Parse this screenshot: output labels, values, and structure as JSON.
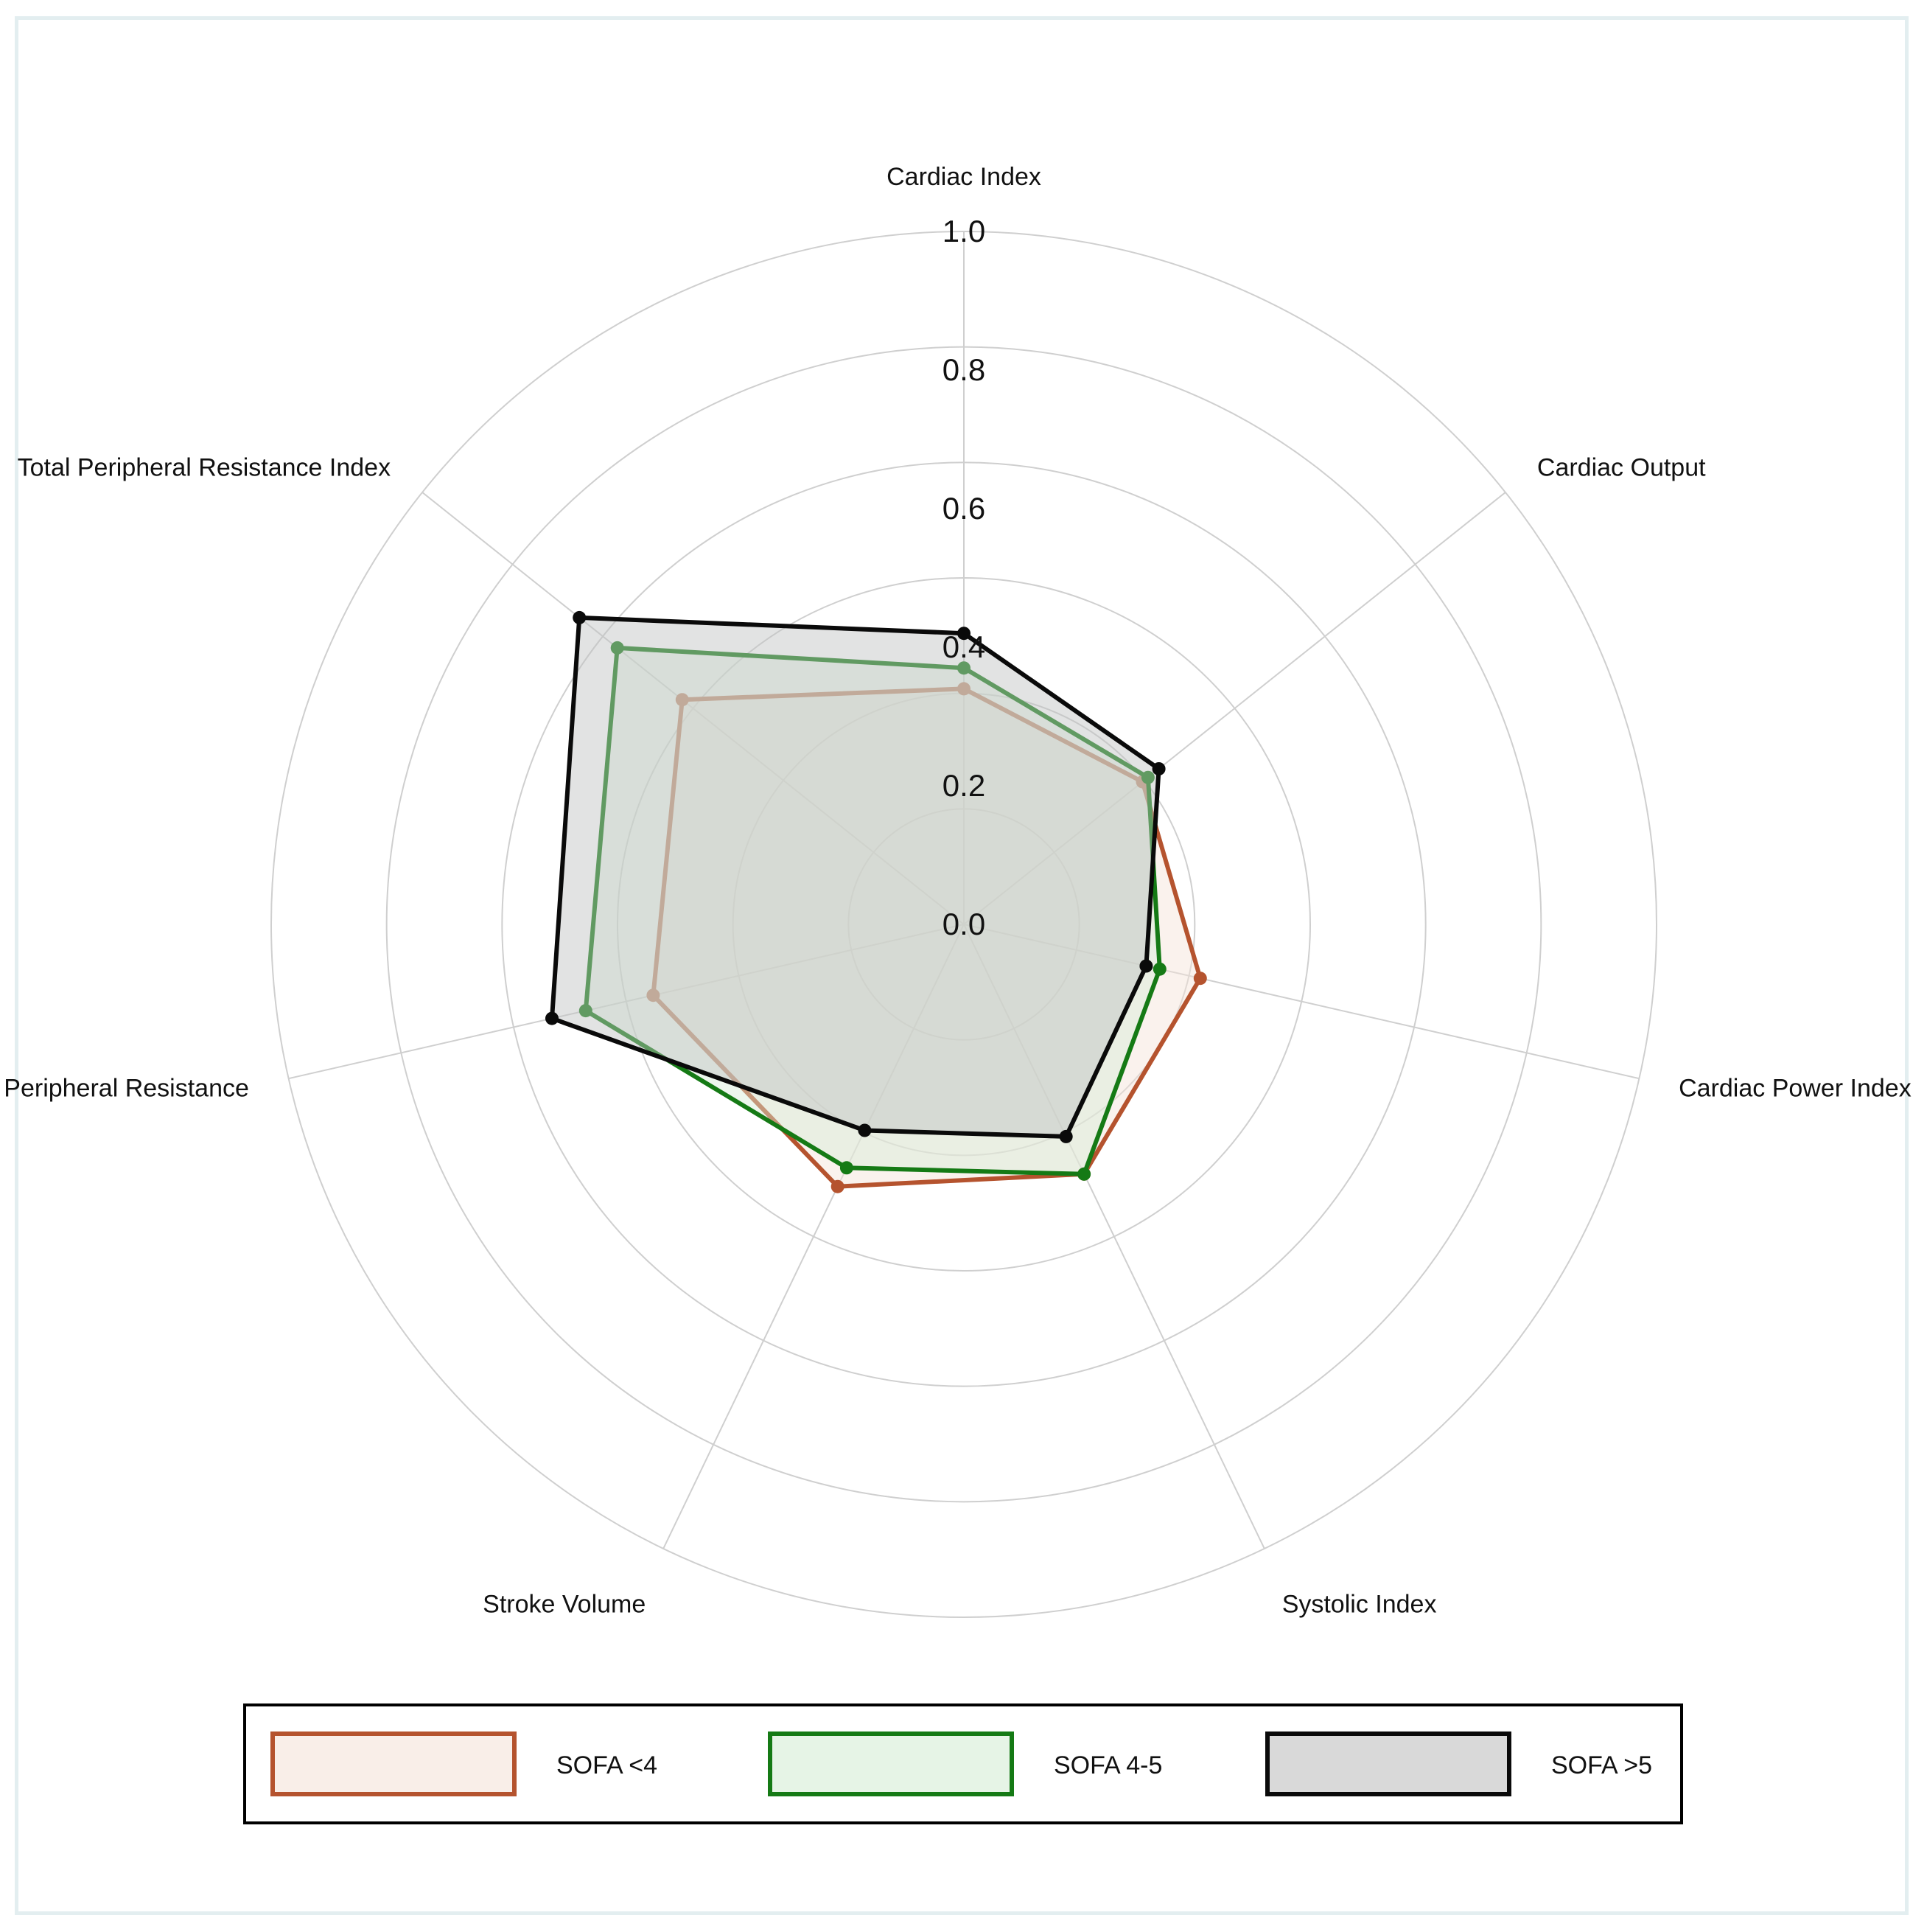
{
  "chart_data": {
    "type": "radar",
    "title": "",
    "axes": [
      "Cardiac Index",
      "Cardiac Output",
      "Cardiac Power Index",
      "Systolic Index",
      "Stroke Volume",
      "Total Peripheral Resistance",
      "Total Peripheral Resistance Index"
    ],
    "radial_ticks": [
      "0.0",
      "0.2",
      "0.4",
      "0.6",
      "0.8",
      "1.0"
    ],
    "radial_range": [
      0.0,
      1.0
    ],
    "grid": true,
    "legend_position": "bottom",
    "series": [
      {
        "name": "SOFA <4",
        "stroke": "#b5532e",
        "fill": "#f5e2d8",
        "values": [
          0.34,
          0.33,
          0.35,
          0.4,
          0.42,
          0.46,
          0.52
        ]
      },
      {
        "name": "SOFA 4-5",
        "stroke": "#157a15",
        "fill": "#d6ecd6",
        "values": [
          0.37,
          0.34,
          0.29,
          0.4,
          0.39,
          0.56,
          0.64
        ]
      },
      {
        "name": "SOFA >5",
        "stroke": "#0a0a0a",
        "fill": "#bfc0c0",
        "values": [
          0.42,
          0.36,
          0.27,
          0.34,
          0.33,
          0.61,
          0.71
        ]
      }
    ]
  }
}
